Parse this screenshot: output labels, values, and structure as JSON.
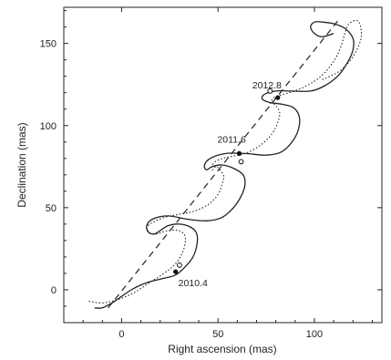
{
  "chart_data": {
    "type": "line",
    "xlabel": "Right ascension (mas)",
    "ylabel": "Declination (mas)",
    "xlim": [
      -30,
      135
    ],
    "ylim": [
      -20,
      172
    ],
    "xticks": [
      0,
      50,
      100
    ],
    "yticks": [
      0,
      50,
      100,
      150
    ],
    "xtick_labels": [
      "0",
      "50",
      "100"
    ],
    "ytick_labels": [
      "0",
      "50",
      "100",
      "150"
    ],
    "grid": false,
    "series": [
      {
        "style": "solid",
        "points": [
          [
            -14,
            -11
          ],
          [
            -10,
            -11
          ],
          [
            -5,
            -8
          ],
          [
            0,
            -4
          ],
          [
            5,
            0
          ],
          [
            10,
            3
          ],
          [
            15,
            5
          ],
          [
            22,
            7
          ],
          [
            28,
            9
          ],
          [
            33,
            14
          ],
          [
            37,
            20
          ],
          [
            39,
            27
          ],
          [
            39,
            34
          ],
          [
            36,
            38
          ],
          [
            30,
            40
          ],
          [
            24,
            39
          ],
          [
            20,
            36
          ],
          [
            17,
            34
          ],
          [
            14,
            35
          ],
          [
            13,
            39
          ],
          [
            16,
            43
          ],
          [
            24,
            45
          ],
          [
            34,
            43
          ],
          [
            44,
            42
          ],
          [
            52,
            44
          ],
          [
            58,
            50
          ],
          [
            62,
            57
          ],
          [
            64,
            64
          ],
          [
            63,
            70
          ],
          [
            58,
            74
          ],
          [
            52,
            76
          ],
          [
            47,
            75
          ],
          [
            44,
            73
          ],
          [
            43,
            76
          ],
          [
            46,
            80
          ],
          [
            54,
            83
          ],
          [
            64,
            83
          ],
          [
            75,
            82
          ],
          [
            83,
            84
          ],
          [
            89,
            91
          ],
          [
            92,
            99
          ],
          [
            92,
            106
          ],
          [
            89,
            111
          ],
          [
            83,
            113
          ],
          [
            77,
            114
          ],
          [
            73,
            116
          ],
          [
            74,
            119
          ],
          [
            80,
            121
          ],
          [
            88,
            121
          ],
          [
            98,
            121
          ],
          [
            105,
            124
          ],
          [
            112,
            130
          ],
          [
            117,
            138
          ],
          [
            120,
            146
          ],
          [
            120,
            153
          ],
          [
            116,
            159
          ],
          [
            110,
            162
          ],
          [
            104,
            163
          ],
          [
            100,
            163
          ],
          [
            98,
            160
          ],
          [
            100,
            156
          ],
          [
            104,
            154
          ],
          [
            110,
            156
          ]
        ]
      },
      {
        "style": "dotted",
        "points": [
          [
            -17,
            -7
          ],
          [
            -10,
            -8
          ],
          [
            -2,
            -6
          ],
          [
            6,
            -2
          ],
          [
            14,
            4
          ],
          [
            22,
            10
          ],
          [
            28,
            16
          ],
          [
            32,
            24
          ],
          [
            33,
            32
          ],
          [
            30,
            36
          ],
          [
            24,
            36
          ],
          [
            18,
            34
          ],
          [
            14,
            35
          ],
          [
            13,
            38
          ],
          [
            16,
            41
          ],
          [
            22,
            44
          ],
          [
            30,
            46
          ],
          [
            38,
            48
          ],
          [
            45,
            52
          ],
          [
            50,
            58
          ],
          [
            52,
            64
          ],
          [
            53,
            69
          ],
          [
            51,
            73
          ],
          [
            49,
            75
          ],
          [
            47,
            73
          ],
          [
            47,
            76
          ],
          [
            50,
            79
          ],
          [
            56,
            81
          ],
          [
            64,
            83
          ],
          [
            72,
            88
          ],
          [
            78,
            95
          ],
          [
            81,
            102
          ],
          [
            82,
            108
          ],
          [
            80,
            112
          ],
          [
            78,
            114
          ],
          [
            77,
            113
          ],
          [
            79,
            117
          ],
          [
            84,
            119
          ],
          [
            92,
            122
          ],
          [
            100,
            127
          ],
          [
            106,
            133
          ],
          [
            111,
            141
          ],
          [
            114,
            149
          ],
          [
            116,
            157
          ],
          [
            118,
            162
          ],
          [
            122,
            164
          ],
          [
            124,
            160
          ],
          [
            124,
            152
          ],
          [
            120,
            142
          ],
          [
            114,
            134
          ],
          [
            108,
            130
          ],
          [
            104,
            128
          ]
        ]
      },
      {
        "style": "dashed",
        "points": [
          [
            -7,
            -11
          ],
          [
            113,
            165
          ]
        ]
      }
    ],
    "markers": [
      {
        "label": "2010.4",
        "filled": [
          28,
          11
        ],
        "open": [
          30,
          15
        ]
      },
      {
        "label": "2011.6",
        "filled": [
          61,
          83
        ],
        "open": [
          62,
          78
        ]
      },
      {
        "label": "2012.8",
        "filled": [
          81,
          117
        ],
        "open": [
          77,
          121
        ]
      }
    ]
  }
}
